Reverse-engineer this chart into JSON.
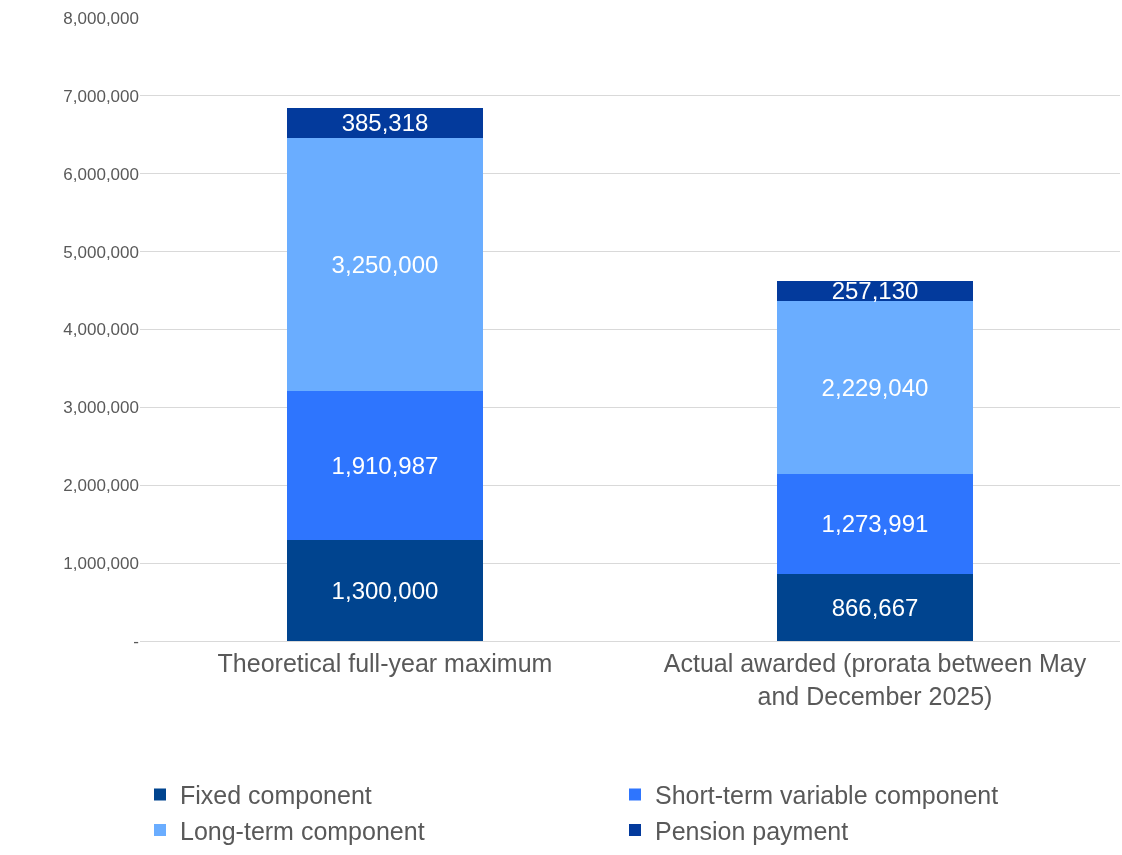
{
  "chart_data": {
    "type": "bar",
    "stacked": true,
    "categories": [
      "Theoretical full-year maximum",
      "Actual awarded (prorata between May and December 2025)"
    ],
    "series": [
      {
        "name": "Fixed component",
        "color": "#00448f",
        "values": [
          1300000,
          866667
        ],
        "value_labels": [
          "1,300,000",
          "866,667"
        ]
      },
      {
        "name": "Short-term variable component",
        "color": "#2e75fe",
        "values": [
          1910987,
          1273991
        ],
        "value_labels": [
          "1,910,987",
          "1,273,991"
        ]
      },
      {
        "name": "Long-term component",
        "color": "#6aadff",
        "values": [
          3250000,
          2229040
        ],
        "value_labels": [
          "3,250,000",
          "2,229,040"
        ]
      },
      {
        "name": "Pension payment",
        "color": "#033a9c",
        "values": [
          385318,
          257130
        ],
        "value_labels": [
          "385,318",
          "257,130"
        ]
      }
    ],
    "ylim": [
      0,
      8000000
    ],
    "yticks": [
      {
        "value": 0,
        "label": "-"
      },
      {
        "value": 1000000,
        "label": "1,000,000"
      },
      {
        "value": 2000000,
        "label": "2,000,000"
      },
      {
        "value": 3000000,
        "label": "3,000,000"
      },
      {
        "value": 4000000,
        "label": "4,000,000"
      },
      {
        "value": 5000000,
        "label": "5,000,000"
      },
      {
        "value": 6000000,
        "label": "6,000,000"
      },
      {
        "value": 7000000,
        "label": "7,000,000"
      },
      {
        "value": 8000000,
        "label": "8,000,000"
      }
    ],
    "grid": "y",
    "legend": "bottom"
  }
}
